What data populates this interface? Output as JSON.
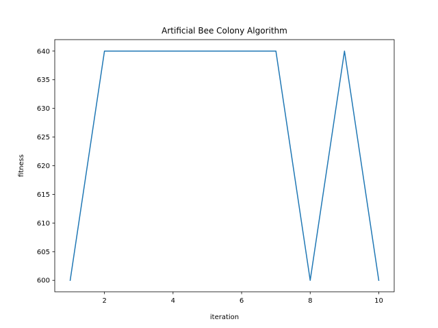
{
  "chart_data": {
    "type": "line",
    "title": "Artificial Bee Colony Algorithm",
    "xlabel": "iteration",
    "ylabel": "fitness",
    "x": [
      1,
      2,
      3,
      4,
      5,
      6,
      7,
      8,
      9,
      10
    ],
    "series": [
      {
        "values": [
          600,
          640,
          640,
          640,
          640,
          640,
          640,
          600,
          640,
          600
        ],
        "color": "#1f77b4"
      }
    ],
    "xlim": [
      0.55,
      10.45
    ],
    "ylim": [
      598,
      642
    ],
    "xticks": [
      2,
      4,
      6,
      8,
      10
    ],
    "yticks": [
      600,
      605,
      610,
      615,
      620,
      625,
      630,
      635,
      640
    ],
    "grid": false,
    "legend": "none"
  }
}
